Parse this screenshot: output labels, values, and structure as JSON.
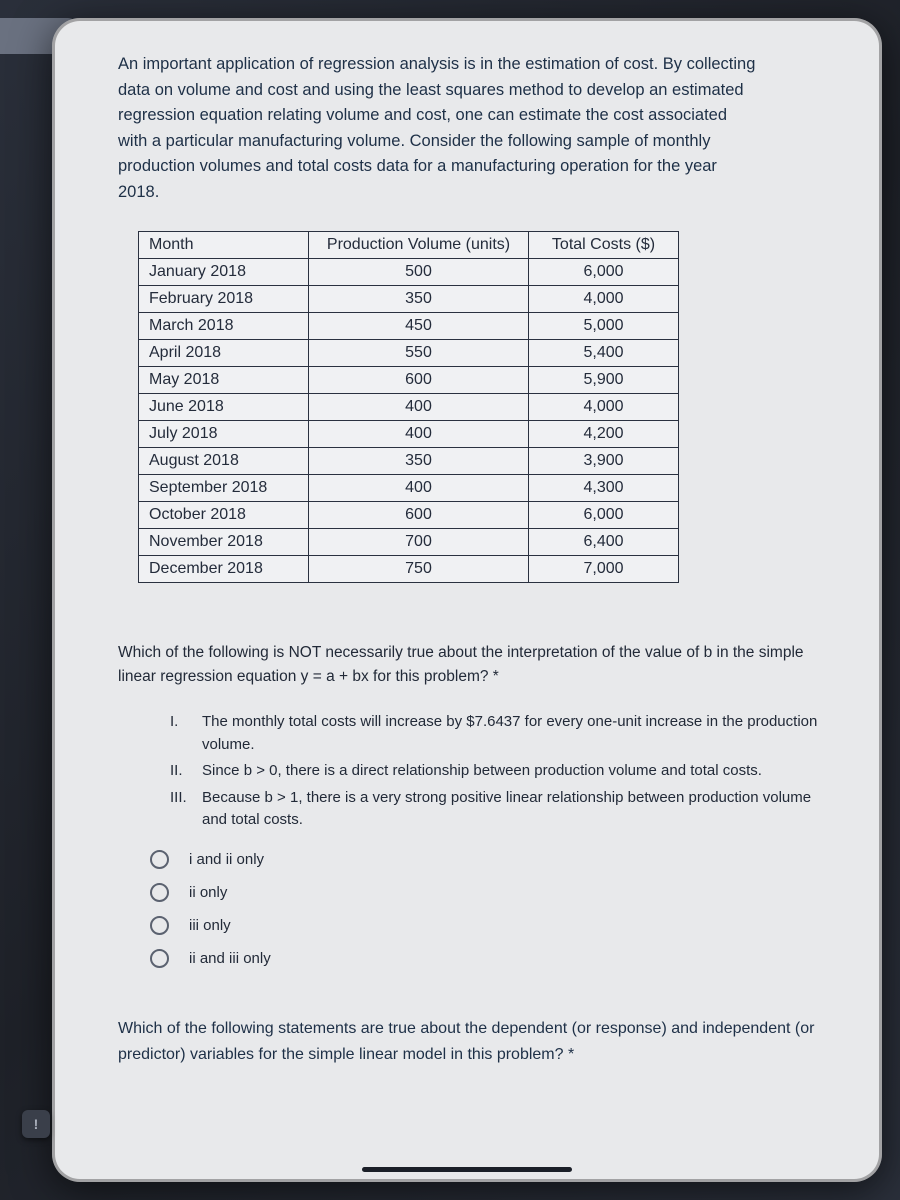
{
  "intro": "An important application of regression analysis is in the estimation of cost. By collecting data on volume and cost and using the least squares method to develop an estimated regression equation relating volume and cost, one can estimate the cost associated with a particular manufacturing volume. Consider the following sample of monthly production volumes and total costs data for a manufacturing operation for the year 2018.",
  "table": {
    "columns": [
      "Month",
      "Production Volume (units)",
      "Total Costs ($)"
    ],
    "rows": [
      [
        "January 2018",
        "500",
        "6,000"
      ],
      [
        "February 2018",
        "350",
        "4,000"
      ],
      [
        "March 2018",
        "450",
        "5,000"
      ],
      [
        "April 2018",
        "550",
        "5,400"
      ],
      [
        "May 2018",
        "600",
        "5,900"
      ],
      [
        "June 2018",
        "400",
        "4,000"
      ],
      [
        "July 2018",
        "400",
        "4,200"
      ],
      [
        "August 2018",
        "350",
        "3,900"
      ],
      [
        "September 2018",
        "400",
        "4,300"
      ],
      [
        "October 2018",
        "600",
        "6,000"
      ],
      [
        "November 2018",
        "700",
        "6,400"
      ],
      [
        "December 2018",
        "750",
        "7,000"
      ]
    ],
    "border_color": "#2a3140",
    "background_color": "#f0f1f3"
  },
  "question1": "Which of the following is NOT necessarily true about the interpretation of the value of b in the simple linear regression equation y = a + bx for this problem? *",
  "statements": [
    {
      "num": "I.",
      "text": "The monthly total costs will increase by $7.6437 for every one-unit increase in the production volume."
    },
    {
      "num": "II.",
      "text": "Since b > 0, there is a direct relationship between production volume and total costs."
    },
    {
      "num": "III.",
      "text": "Because b > 1, there is a very strong positive linear relationship between production volume and total costs."
    }
  ],
  "options": [
    "i and ii only",
    "ii only",
    "iii only",
    "ii and iii only"
  ],
  "question2": "Which of the following statements are true about the dependent (or response) and independent (or predictor) variables for the simple linear model in this problem? *",
  "side_button_label": "!",
  "colors": {
    "page_bg": "#e8e9eb",
    "body_bg": "#2a2f3a",
    "text_primary": "#1e3047",
    "text_body": "#222a38",
    "radio_border": "#5b6270"
  }
}
